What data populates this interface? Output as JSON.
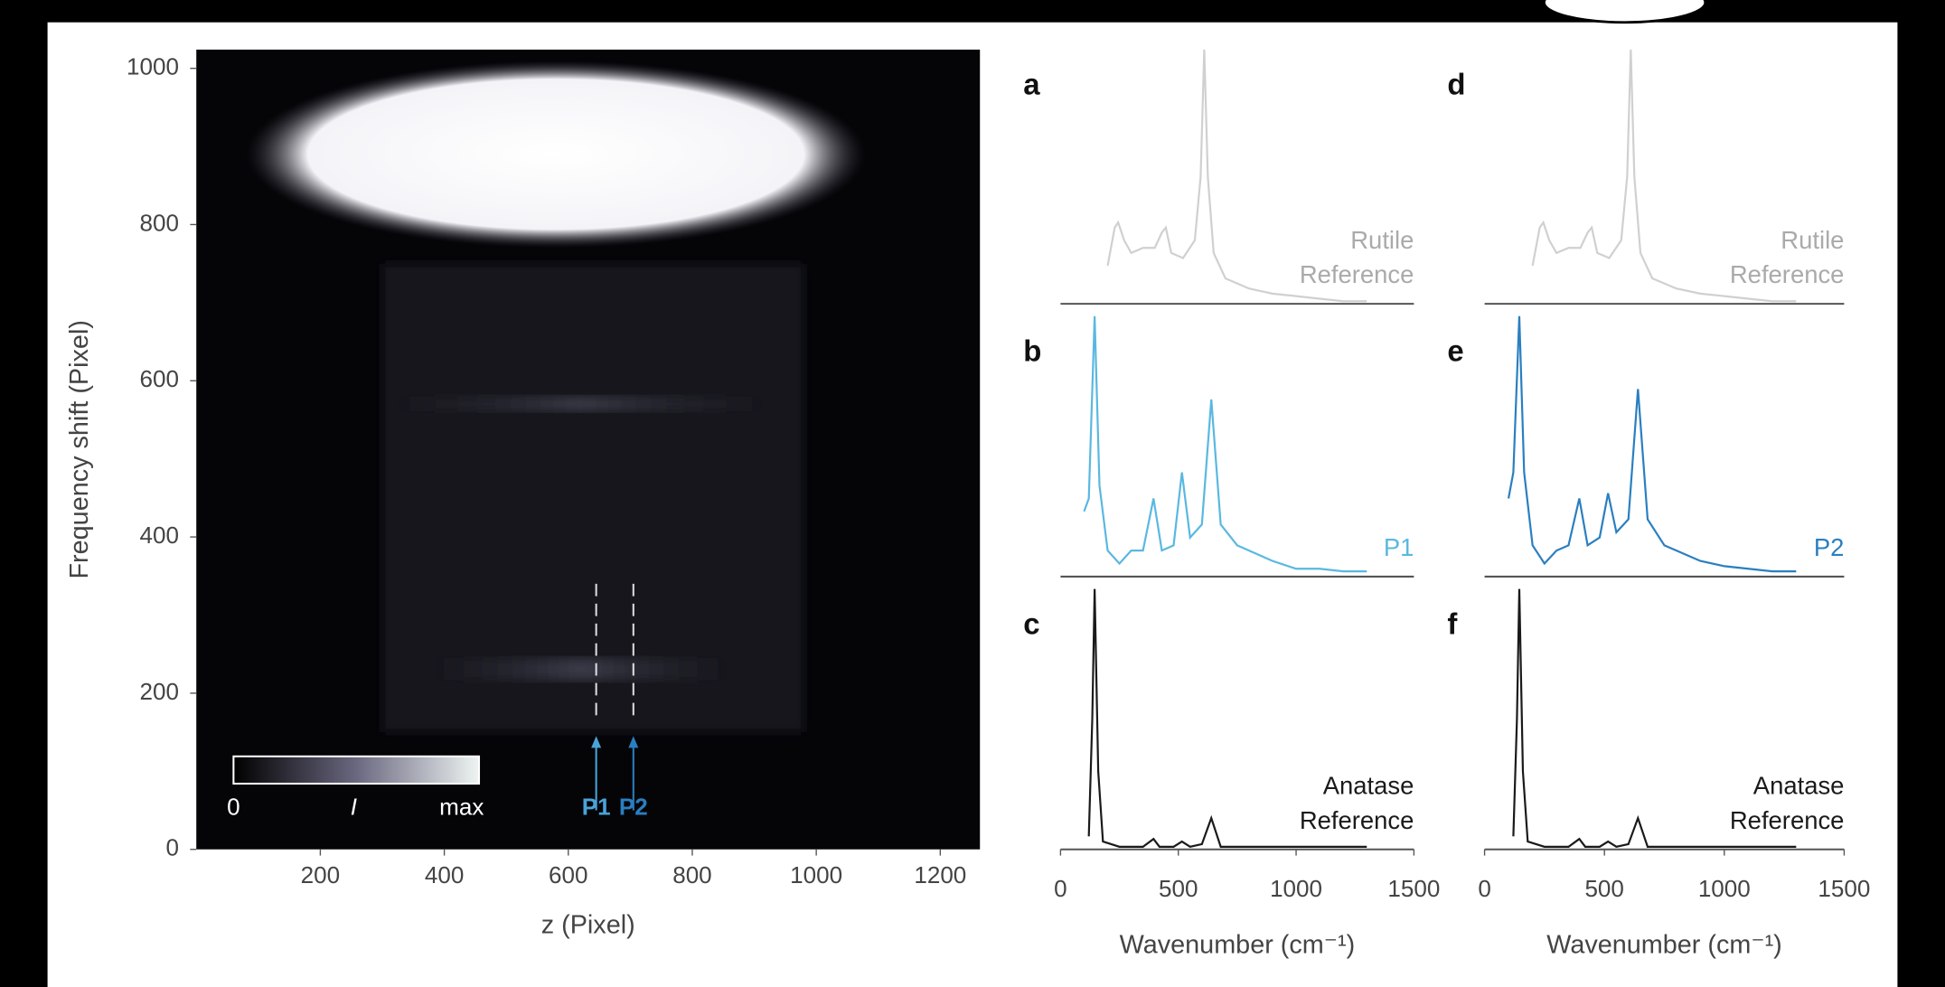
{
  "chart_data": [
    {
      "type": "heatmap",
      "xlabel": "z (Pixel)",
      "ylabel": "Frequency shift (Pixel)",
      "xlim": [
        0,
        1264
      ],
      "ylim": [
        0,
        1024
      ],
      "xticks": [
        200,
        400,
        600,
        800,
        1000,
        1200
      ],
      "yticks": [
        0,
        200,
        400,
        600,
        800,
        1000
      ],
      "colorbar_labels": [
        "0",
        "I",
        "max"
      ],
      "markers": [
        {
          "label": "P1",
          "x": 645,
          "color": "#4aa3d8"
        },
        {
          "label": "P2",
          "x": 705,
          "color": "#2a7fc0"
        }
      ]
    },
    {
      "type": "line",
      "panel": "a",
      "annotation": [
        "Rutile",
        "Reference"
      ],
      "color": "#d0d0d0",
      "xlim": [
        0,
        1500
      ],
      "ylim": [
        0,
        1
      ],
      "x": [
        200,
        230,
        245,
        270,
        300,
        350,
        400,
        430,
        447,
        470,
        520,
        570,
        595,
        610,
        625,
        650,
        700,
        800,
        900,
        1000,
        1100,
        1200,
        1300
      ],
      "values": [
        0.15,
        0.3,
        0.32,
        0.25,
        0.2,
        0.22,
        0.22,
        0.28,
        0.3,
        0.2,
        0.18,
        0.25,
        0.5,
        1.0,
        0.5,
        0.2,
        0.1,
        0.06,
        0.04,
        0.03,
        0.02,
        0.01,
        0.01
      ]
    },
    {
      "type": "line",
      "panel": "b",
      "annotation": [
        "P1"
      ],
      "color": "#5ab8e0",
      "xlim": [
        0,
        1500
      ],
      "ylim": [
        0,
        1
      ],
      "x": [
        100,
        120,
        145,
        165,
        200,
        250,
        300,
        350,
        395,
        430,
        480,
        515,
        550,
        600,
        640,
        680,
        750,
        800,
        900,
        1000,
        1100,
        1200,
        1300
      ],
      "values": [
        0.25,
        0.3,
        1.0,
        0.35,
        0.1,
        0.05,
        0.1,
        0.1,
        0.3,
        0.1,
        0.12,
        0.4,
        0.15,
        0.2,
        0.68,
        0.2,
        0.12,
        0.1,
        0.06,
        0.03,
        0.03,
        0.02,
        0.02
      ]
    },
    {
      "type": "line",
      "panel": "c",
      "annotation": [
        "Anatase",
        "Reference"
      ],
      "color": "#1a1a1a",
      "xlim": [
        0,
        1500
      ],
      "ylim": [
        0,
        1
      ],
      "xticks": [
        0,
        500,
        1000,
        1500
      ],
      "xlabel": "Wavenumber (cm⁻¹)",
      "x": [
        120,
        135,
        145,
        160,
        180,
        250,
        300,
        350,
        395,
        420,
        480,
        515,
        550,
        600,
        640,
        680,
        750,
        1300
      ],
      "values": [
        0.05,
        0.5,
        1.0,
        0.3,
        0.03,
        0.01,
        0.01,
        0.01,
        0.04,
        0.01,
        0.01,
        0.03,
        0.01,
        0.02,
        0.12,
        0.01,
        0.01,
        0.01
      ]
    },
    {
      "type": "line",
      "panel": "d",
      "annotation": [
        "Rutile",
        "Reference"
      ],
      "color": "#d0d0d0",
      "xlim": [
        0,
        1500
      ],
      "ylim": [
        0,
        1
      ],
      "x": [
        200,
        230,
        245,
        270,
        300,
        350,
        400,
        430,
        447,
        470,
        520,
        570,
        595,
        610,
        625,
        650,
        700,
        800,
        900,
        1000,
        1100,
        1200,
        1300
      ],
      "values": [
        0.15,
        0.3,
        0.32,
        0.25,
        0.2,
        0.22,
        0.22,
        0.28,
        0.3,
        0.2,
        0.18,
        0.25,
        0.5,
        1.0,
        0.5,
        0.2,
        0.1,
        0.06,
        0.04,
        0.03,
        0.02,
        0.01,
        0.01
      ]
    },
    {
      "type": "line",
      "panel": "e",
      "annotation": [
        "P2"
      ],
      "color": "#2a7fc0",
      "xlim": [
        0,
        1500
      ],
      "ylim": [
        0,
        1
      ],
      "x": [
        100,
        120,
        145,
        165,
        200,
        250,
        300,
        350,
        395,
        430,
        480,
        515,
        550,
        600,
        640,
        680,
        750,
        800,
        900,
        1000,
        1100,
        1200,
        1300
      ],
      "values": [
        0.3,
        0.4,
        1.0,
        0.4,
        0.12,
        0.05,
        0.1,
        0.12,
        0.3,
        0.12,
        0.15,
        0.32,
        0.17,
        0.22,
        0.72,
        0.22,
        0.12,
        0.1,
        0.06,
        0.04,
        0.03,
        0.02,
        0.02
      ]
    },
    {
      "type": "line",
      "panel": "f",
      "annotation": [
        "Anatase",
        "Reference"
      ],
      "color": "#1a1a1a",
      "xlim": [
        0,
        1500
      ],
      "ylim": [
        0,
        1
      ],
      "xticks": [
        0,
        500,
        1000,
        1500
      ],
      "xlabel": "Wavenumber (cm⁻¹)",
      "x": [
        120,
        135,
        145,
        160,
        180,
        250,
        300,
        350,
        395,
        420,
        480,
        515,
        550,
        600,
        640,
        680,
        750,
        1300
      ],
      "values": [
        0.05,
        0.5,
        1.0,
        0.3,
        0.03,
        0.01,
        0.01,
        0.01,
        0.04,
        0.01,
        0.01,
        0.03,
        0.01,
        0.02,
        0.12,
        0.01,
        0.01,
        0.01
      ]
    }
  ]
}
